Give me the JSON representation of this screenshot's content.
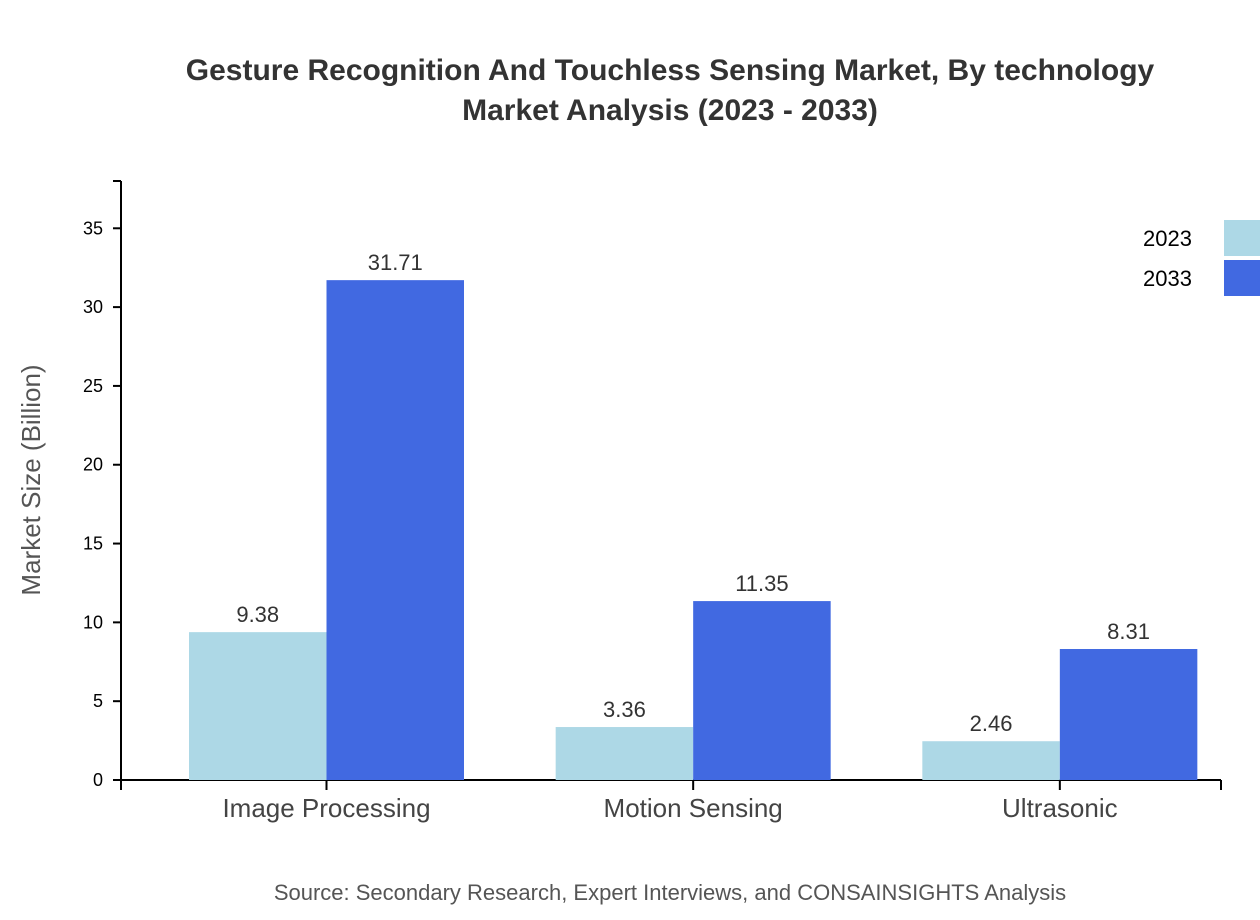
{
  "chart_data": {
    "type": "bar",
    "title_line1": "Gesture Recognition And Touchless Sensing Market, By technology",
    "title_line2": "Market Analysis (2023 - 2033)",
    "xlabel": "",
    "ylabel": "Market Size (Billion)",
    "categories": [
      "Image Processing",
      "Motion Sensing",
      "Ultrasonic"
    ],
    "series": [
      {
        "name": "2023",
        "color": "#add8e6",
        "values": [
          9.38,
          3.36,
          2.46
        ]
      },
      {
        "name": "2033",
        "color": "#4169e1",
        "values": [
          31.71,
          11.35,
          8.31
        ]
      }
    ],
    "ylim": [
      0,
      38
    ],
    "yticks": [
      0,
      5,
      10,
      15,
      20,
      25,
      30,
      35
    ],
    "grid": false,
    "legend_position": "top-right",
    "source": "Source: Secondary Research, Expert Interviews, and CONSAINSIGHTS Analysis"
  }
}
